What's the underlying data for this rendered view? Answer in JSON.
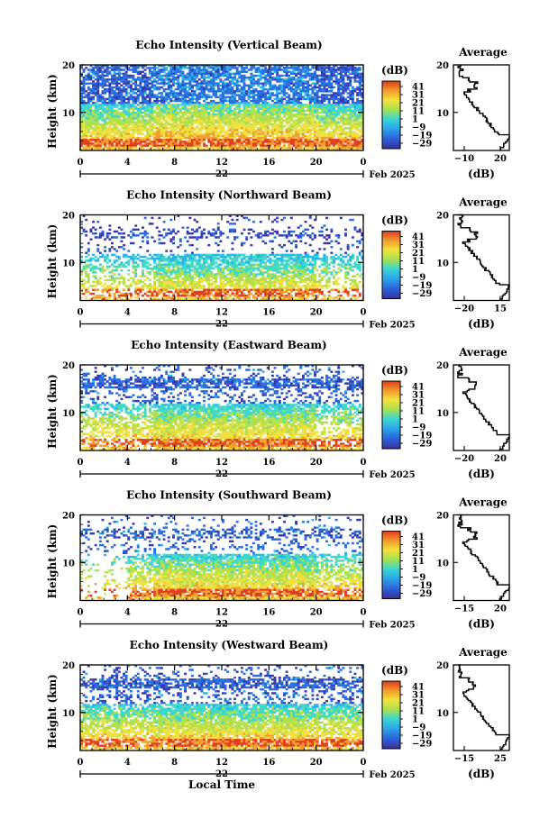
{
  "figure": {
    "average_title": "Average",
    "unit_label": "(dB)",
    "date_label": "Feb 2025",
    "day_label": "22",
    "y_axis_label": "Height (km)",
    "x_axis_label": "Local Time",
    "colorbar_ticks": [
      "41",
      "31",
      "21",
      "11",
      "1",
      "−9",
      "−19",
      "−29"
    ],
    "colorscale": [
      "#3a3ab0",
      "#2a6ee0",
      "#2ab4e8",
      "#40d8c8",
      "#b0e050",
      "#f0e040",
      "#f0a030",
      "#e04020"
    ]
  },
  "chart_data": [
    {
      "type": "heatmap",
      "title": "Echo Intensity (Vertical Beam)",
      "x_ticks": [
        "0",
        "4",
        "8",
        "12",
        "16",
        "20",
        "0"
      ],
      "x_range": [
        0,
        24
      ],
      "y_ticks": [
        "20",
        "10"
      ],
      "y_range": [
        0,
        20
      ],
      "z_range": [
        -29,
        41
      ],
      "profile_x_ticks": [
        "−10",
        "20"
      ],
      "profile_x_range": [
        -20,
        30
      ]
    },
    {
      "type": "heatmap",
      "title": "Echo Intensity (Northward Beam)",
      "x_ticks": [
        "0",
        "4",
        "8",
        "12",
        "16",
        "20",
        "0"
      ],
      "x_range": [
        0,
        24
      ],
      "y_ticks": [
        "20",
        "10"
      ],
      "y_range": [
        0,
        20
      ],
      "z_range": [
        -29,
        41
      ],
      "profile_x_ticks": [
        "−20",
        "15"
      ],
      "profile_x_range": [
        -28,
        22
      ]
    },
    {
      "type": "heatmap",
      "title": "Echo Intensity (Eastward Beam)",
      "x_ticks": [
        "0",
        "4",
        "8",
        "12",
        "16",
        "20",
        "0"
      ],
      "x_range": [
        0,
        24
      ],
      "y_ticks": [
        "20",
        "10"
      ],
      "y_range": [
        0,
        20
      ],
      "z_range": [
        -29,
        41
      ],
      "profile_x_ticks": [
        "−20",
        "20"
      ],
      "profile_x_range": [
        -28,
        25
      ]
    },
    {
      "type": "heatmap",
      "title": "Echo Intensity (Southward Beam)",
      "x_ticks": [
        "0",
        "4",
        "8",
        "12",
        "16",
        "20",
        "0"
      ],
      "x_range": [
        0,
        24
      ],
      "y_ticks": [
        "20",
        "10"
      ],
      "y_range": [
        0,
        20
      ],
      "z_range": [
        -29,
        41
      ],
      "profile_x_ticks": [
        "−15",
        "20"
      ],
      "profile_x_range": [
        -25,
        25
      ]
    },
    {
      "type": "heatmap",
      "title": "Echo Intensity (Westward Beam)",
      "x_ticks": [
        "0",
        "4",
        "8",
        "12",
        "16",
        "20",
        "0"
      ],
      "x_range": [
        0,
        24
      ],
      "y_ticks": [
        "20",
        "10"
      ],
      "y_range": [
        0,
        20
      ],
      "z_range": [
        -29,
        41
      ],
      "profile_x_ticks": [
        "−15",
        "25"
      ],
      "profile_x_range": [
        -25,
        30
      ]
    }
  ]
}
